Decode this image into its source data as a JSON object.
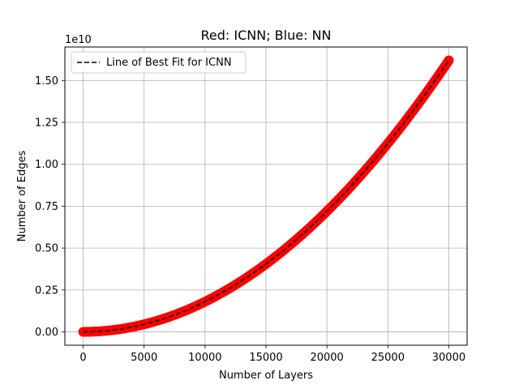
{
  "chart_data": {
    "type": "scatter",
    "title": "Red: ICNN; Blue: NN",
    "xlabel": "Number of Layers",
    "ylabel": "Number of Edges",
    "y_scale_label": "1e10",
    "xlim": [
      -1500,
      31500
    ],
    "ylim": [
      -0.08,
      1.7
    ],
    "x_ticks": [
      0,
      5000,
      10000,
      15000,
      20000,
      25000,
      30000
    ],
    "x_tick_labels": [
      "0",
      "5000",
      "10000",
      "15000",
      "20000",
      "25000",
      "30000"
    ],
    "y_ticks": [
      0,
      0.25,
      0.5,
      0.75,
      1.0,
      1.25,
      1.5
    ],
    "y_tick_labels": [
      "0.00",
      "0.25",
      "0.50",
      "0.75",
      "1.00",
      "1.25",
      "1.50"
    ],
    "grid": true,
    "legend": {
      "position": "top-left",
      "entries": [
        {
          "label": "Line of Best Fit for ICNN",
          "style": "dashed",
          "color": "#000000"
        }
      ]
    },
    "series": [
      {
        "name": "ICNN",
        "kind": "scatter",
        "color": "#ff0000",
        "model": "quadratic",
        "coefficient": 1.8e-09,
        "x_start": 0,
        "x_end": 30000,
        "x_step": 100
      },
      {
        "name": "Line of Best Fit for ICNN",
        "kind": "line",
        "color": "#000000",
        "style": "dashed",
        "model": "quadratic",
        "coefficient": 1.8e-09,
        "x_start": 0,
        "x_end": 30000
      }
    ]
  }
}
